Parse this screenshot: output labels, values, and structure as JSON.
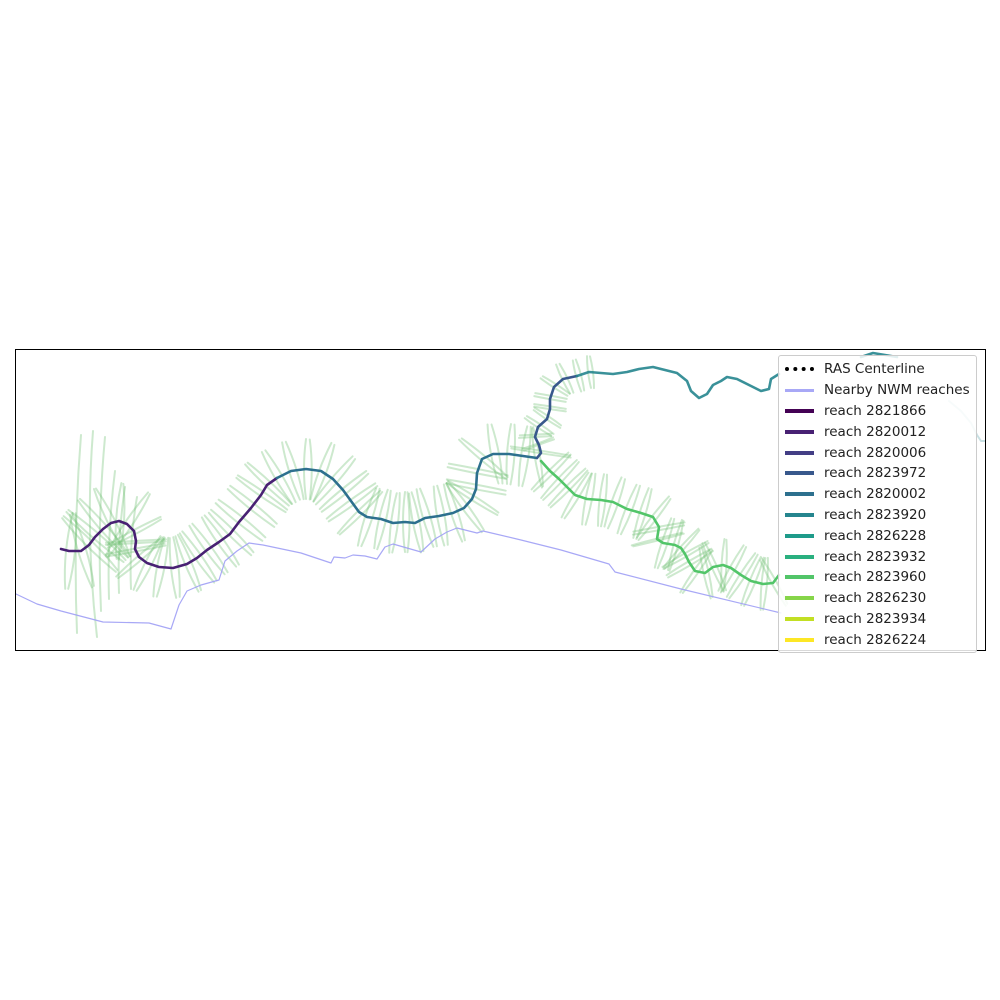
{
  "legend": {
    "items": [
      {
        "label": "RAS Centerline",
        "color": "#000000",
        "style": "dashed"
      },
      {
        "label": "Nearby NWM reaches",
        "color": "#9f9ff5",
        "style": "solid"
      },
      {
        "label": "reach 2821866",
        "color": "#440154",
        "style": "solid"
      },
      {
        "label": "reach 2820012",
        "color": "#482173",
        "style": "solid"
      },
      {
        "label": "reach 2820006",
        "color": "#433e85",
        "style": "solid"
      },
      {
        "label": "reach 2823972",
        "color": "#38588c",
        "style": "solid"
      },
      {
        "label": "reach 2820002",
        "color": "#2d708e",
        "style": "solid"
      },
      {
        "label": "reach 2823920",
        "color": "#25858e",
        "style": "solid"
      },
      {
        "label": "reach 2826228",
        "color": "#1e9b8a",
        "style": "solid"
      },
      {
        "label": "reach 2823932",
        "color": "#2ab07f",
        "style": "solid"
      },
      {
        "label": "reach 2823960",
        "color": "#52c569",
        "style": "solid"
      },
      {
        "label": "reach 2826230",
        "color": "#86d549",
        "style": "solid"
      },
      {
        "label": "reach 2823934",
        "color": "#c2df23",
        "style": "solid"
      },
      {
        "label": "reach 2826224",
        "color": "#fde725",
        "style": "solid"
      }
    ]
  },
  "colors": {
    "cross_section": "#6fbf73",
    "nwm": "#9f9ff5",
    "frame": "#000000"
  }
}
